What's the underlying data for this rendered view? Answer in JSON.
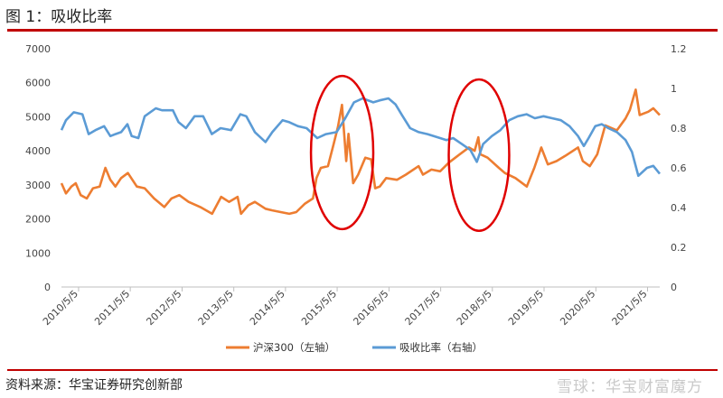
{
  "header": {
    "figure_title": "图 1：吸收比率"
  },
  "footer": {
    "source": "资料来源：华宝证券研究创新部",
    "watermark": "雪球：华宝财富魔方"
  },
  "colors": {
    "rule": "#c00000",
    "hs300": "#ed7d31",
    "absorption": "#5b9bd5",
    "highlight_ellipse": "#e00000"
  },
  "chart_data": {
    "type": "line",
    "title": "",
    "x_labels": [
      "2010/5/5",
      "2011/5/5",
      "2012/5/5",
      "2013/5/5",
      "2014/5/5",
      "2015/5/5",
      "2016/5/5",
      "2017/5/5",
      "2018/5/5",
      "2019/5/5",
      "2020/5/5",
      "2021/5/5"
    ],
    "x_range": [
      "2010-01-04",
      "2021-07-30"
    ],
    "y_left": {
      "ticks": [
        0,
        1000,
        2000,
        3000,
        4000,
        5000,
        6000,
        7000
      ],
      "range": [
        0,
        7000
      ]
    },
    "y_right": {
      "ticks": [
        "0",
        "0.2",
        "0.4",
        "0.6",
        "0.8",
        "1",
        "1.2"
      ],
      "range": [
        0,
        1.2
      ]
    },
    "grid": false,
    "legend_position": "bottom",
    "series": [
      {
        "name": "沪深300（左轴）",
        "axis": "left",
        "color": "#ed7d31",
        "points": [
          [
            "2010-01-04",
            3050
          ],
          [
            "2010-02-05",
            2750
          ],
          [
            "2010-03-15",
            2950
          ],
          [
            "2010-04-15",
            3050
          ],
          [
            "2010-05-20",
            2700
          ],
          [
            "2010-07-02",
            2600
          ],
          [
            "2010-08-15",
            2900
          ],
          [
            "2010-10-01",
            2950
          ],
          [
            "2010-11-10",
            3500
          ],
          [
            "2010-12-15",
            3150
          ],
          [
            "2011-01-20",
            2950
          ],
          [
            "2011-03-01",
            3200
          ],
          [
            "2011-04-18",
            3350
          ],
          [
            "2011-06-20",
            2950
          ],
          [
            "2011-08-15",
            2900
          ],
          [
            "2011-10-20",
            2600
          ],
          [
            "2011-12-31",
            2350
          ],
          [
            "2012-02-20",
            2600
          ],
          [
            "2012-04-15",
            2700
          ],
          [
            "2012-06-20",
            2500
          ],
          [
            "2012-09-10",
            2350
          ],
          [
            "2012-12-03",
            2150
          ],
          [
            "2013-02-05",
            2650
          ],
          [
            "2013-04-01",
            2500
          ],
          [
            "2013-06-01",
            2650
          ],
          [
            "2013-06-25",
            2150
          ],
          [
            "2013-08-15",
            2400
          ],
          [
            "2013-10-01",
            2500
          ],
          [
            "2013-12-15",
            2300
          ],
          [
            "2014-02-01",
            2250
          ],
          [
            "2014-04-01",
            2200
          ],
          [
            "2014-06-01",
            2150
          ],
          [
            "2014-07-20",
            2200
          ],
          [
            "2014-09-20",
            2450
          ],
          [
            "2014-11-15",
            2600
          ],
          [
            "2014-12-10",
            3200
          ],
          [
            "2015-01-10",
            3500
          ],
          [
            "2015-03-01",
            3550
          ],
          [
            "2015-04-10",
            4200
          ],
          [
            "2015-05-10",
            4700
          ],
          [
            "2015-06-08",
            5350
          ],
          [
            "2015-07-08",
            3700
          ],
          [
            "2015-07-24",
            4500
          ],
          [
            "2015-08-26",
            3050
          ],
          [
            "2015-09-30",
            3300
          ],
          [
            "2015-11-20",
            3800
          ],
          [
            "2015-12-31",
            3750
          ],
          [
            "2016-01-28",
            2900
          ],
          [
            "2016-03-01",
            2950
          ],
          [
            "2016-04-15",
            3200
          ],
          [
            "2016-06-30",
            3150
          ],
          [
            "2016-09-01",
            3300
          ],
          [
            "2016-11-30",
            3550
          ],
          [
            "2016-12-31",
            3300
          ],
          [
            "2017-03-01",
            3450
          ],
          [
            "2017-05-01",
            3400
          ],
          [
            "2017-07-01",
            3650
          ],
          [
            "2017-09-01",
            3850
          ],
          [
            "2017-11-20",
            4100
          ],
          [
            "2017-12-31",
            4000
          ],
          [
            "2018-01-26",
            4400
          ],
          [
            "2018-02-10",
            3900
          ],
          [
            "2018-04-01",
            3800
          ],
          [
            "2018-06-20",
            3500
          ],
          [
            "2018-08-01",
            3350
          ],
          [
            "2018-10-15",
            3200
          ],
          [
            "2019-01-03",
            2950
          ],
          [
            "2019-02-25",
            3500
          ],
          [
            "2019-04-15",
            4100
          ],
          [
            "2019-06-01",
            3600
          ],
          [
            "2019-08-01",
            3700
          ],
          [
            "2019-10-01",
            3850
          ],
          [
            "2019-12-31",
            4100
          ],
          [
            "2020-02-03",
            3700
          ],
          [
            "2020-03-23",
            3550
          ],
          [
            "2020-05-15",
            3900
          ],
          [
            "2020-07-10",
            4750
          ],
          [
            "2020-09-30",
            4600
          ],
          [
            "2020-11-30",
            4950
          ],
          [
            "2020-12-31",
            5200
          ],
          [
            "2021-02-10",
            5800
          ],
          [
            "2021-03-10",
            5050
          ],
          [
            "2021-05-10",
            5150
          ],
          [
            "2021-06-15",
            5250
          ],
          [
            "2021-07-30",
            5050
          ]
        ]
      },
      {
        "name": "吸收比率（右轴）",
        "axis": "right",
        "color": "#5b9bd5",
        "points": [
          [
            "2010-01-04",
            0.79
          ],
          [
            "2010-02-05",
            0.84
          ],
          [
            "2010-04-01",
            0.88
          ],
          [
            "2010-06-01",
            0.87
          ],
          [
            "2010-07-15",
            0.77
          ],
          [
            "2010-09-01",
            0.79
          ],
          [
            "2010-11-01",
            0.81
          ],
          [
            "2010-12-15",
            0.76
          ],
          [
            "2011-01-20",
            0.77
          ],
          [
            "2011-03-01",
            0.78
          ],
          [
            "2011-04-15",
            0.82
          ],
          [
            "2011-05-15",
            0.76
          ],
          [
            "2011-07-01",
            0.75
          ],
          [
            "2011-08-15",
            0.86
          ],
          [
            "2011-11-01",
            0.9
          ],
          [
            "2011-12-15",
            0.89
          ],
          [
            "2012-03-01",
            0.89
          ],
          [
            "2012-04-10",
            0.83
          ],
          [
            "2012-06-01",
            0.8
          ],
          [
            "2012-08-01",
            0.86
          ],
          [
            "2012-10-01",
            0.86
          ],
          [
            "2012-12-01",
            0.77
          ],
          [
            "2013-02-01",
            0.8
          ],
          [
            "2013-04-15",
            0.79
          ],
          [
            "2013-06-20",
            0.87
          ],
          [
            "2013-08-01",
            0.86
          ],
          [
            "2013-10-01",
            0.78
          ],
          [
            "2013-12-15",
            0.73
          ],
          [
            "2014-02-01",
            0.78
          ],
          [
            "2014-04-15",
            0.84
          ],
          [
            "2014-06-01",
            0.83
          ],
          [
            "2014-08-01",
            0.81
          ],
          [
            "2014-10-01",
            0.8
          ],
          [
            "2014-12-15",
            0.75
          ],
          [
            "2015-02-15",
            0.77
          ],
          [
            "2015-05-01",
            0.78
          ],
          [
            "2015-07-01",
            0.85
          ],
          [
            "2015-09-01",
            0.93
          ],
          [
            "2015-11-01",
            0.95
          ],
          [
            "2016-01-15",
            0.93
          ],
          [
            "2016-03-01",
            0.94
          ],
          [
            "2016-05-01",
            0.95
          ],
          [
            "2016-06-20",
            0.92
          ],
          [
            "2016-08-01",
            0.87
          ],
          [
            "2016-10-01",
            0.8
          ],
          [
            "2016-12-01",
            0.78
          ],
          [
            "2017-02-01",
            0.77
          ],
          [
            "2017-05-01",
            0.75
          ],
          [
            "2017-06-15",
            0.74
          ],
          [
            "2017-08-01",
            0.75
          ],
          [
            "2017-10-01",
            0.72
          ],
          [
            "2017-12-01",
            0.69
          ],
          [
            "2018-01-15",
            0.63
          ],
          [
            "2018-03-01",
            0.72
          ],
          [
            "2018-05-01",
            0.76
          ],
          [
            "2018-07-01",
            0.79
          ],
          [
            "2018-09-01",
            0.84
          ],
          [
            "2018-11-01",
            0.86
          ],
          [
            "2019-01-01",
            0.87
          ],
          [
            "2019-03-01",
            0.85
          ],
          [
            "2019-05-01",
            0.86
          ],
          [
            "2019-07-01",
            0.85
          ],
          [
            "2019-09-01",
            0.84
          ],
          [
            "2019-11-01",
            0.81
          ],
          [
            "2019-12-31",
            0.76
          ],
          [
            "2020-02-10",
            0.71
          ],
          [
            "2020-03-15",
            0.75
          ],
          [
            "2020-05-01",
            0.81
          ],
          [
            "2020-06-15",
            0.82
          ],
          [
            "2020-08-01",
            0.8
          ],
          [
            "2020-10-01",
            0.78
          ],
          [
            "2020-12-01",
            0.74
          ],
          [
            "2021-01-15",
            0.68
          ],
          [
            "2021-03-01",
            0.56
          ],
          [
            "2021-05-01",
            0.6
          ],
          [
            "2021-06-15",
            0.61
          ],
          [
            "2021-07-30",
            0.57
          ]
        ]
      }
    ],
    "annotations": [
      {
        "shape": "ellipse",
        "from": "2014-11-01",
        "to": "2016-01-15",
        "y_left_range": [
          1700,
          6200
        ]
      },
      {
        "shape": "ellipse",
        "from": "2017-07-01",
        "to": "2018-09-01",
        "y_left_range": [
          1650,
          6100
        ]
      }
    ]
  }
}
